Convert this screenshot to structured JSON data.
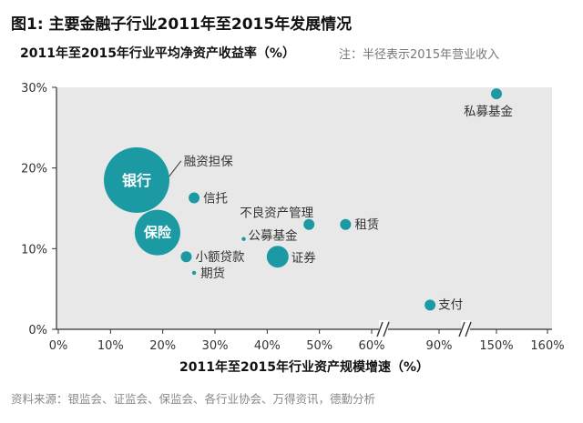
{
  "title": "图1: 主要金融子行业2011年至2015年发展情况",
  "subtitle": "2011年至2015年行业平均净资产收益率（%）",
  "note": "注：半径表示2015年营业收入",
  "source": "资料来源：银监会、证监会、保监会、各行业协会、万得资讯，德勤分析",
  "colors": {
    "bubble": "#1b9aa3",
    "bubble_label": "#ffffff",
    "axis": "#333333",
    "grid": "#cccccc",
    "plot_bg": "#e8e8e8"
  },
  "chart_data": {
    "type": "scatter",
    "title": "",
    "xlabel": "2011年至2015年行业资产规模增速（%）",
    "ylabel": "2011年至2015年行业平均净资产收益率（%）",
    "x_axis_break": true,
    "x_ticks": [
      "0%",
      "10%",
      "20%",
      "30%",
      "40%",
      "50%",
      "60%",
      "90%",
      "150%",
      "160%"
    ],
    "y_ticks": [
      "0%",
      "10%",
      "20%",
      "30%"
    ],
    "ylim": [
      0,
      30
    ],
    "grid": false,
    "points": [
      {
        "label": "银行",
        "x": 15,
        "y": 18.5,
        "size": "largest",
        "label_inside": true
      },
      {
        "label": "保险",
        "x": 19,
        "y": 12,
        "size": "large",
        "label_inside": true
      },
      {
        "label": "融资担保",
        "x": 19.5,
        "y": 17.5,
        "size": "tiny",
        "label_inside": false
      },
      {
        "label": "信托",
        "x": 26,
        "y": 16.3,
        "size": "small",
        "label_inside": false
      },
      {
        "label": "不良资产管理",
        "x": 48,
        "y": 13,
        "size": "small",
        "label_inside": false
      },
      {
        "label": "租赁",
        "x": 55,
        "y": 13,
        "size": "small",
        "label_inside": false
      },
      {
        "label": "公募基金",
        "x": 35.5,
        "y": 11.2,
        "size": "tiny",
        "label_inside": false
      },
      {
        "label": "小额贷款",
        "x": 24.5,
        "y": 9,
        "size": "small",
        "label_inside": false
      },
      {
        "label": "证券",
        "x": 42,
        "y": 9,
        "size": "medium",
        "label_inside": false
      },
      {
        "label": "期货",
        "x": 26,
        "y": 7,
        "size": "tiny",
        "label_inside": false
      },
      {
        "label": "支付",
        "x": 86,
        "y": 3,
        "size": "small",
        "label_inside": false
      },
      {
        "label": "私募基金",
        "x": 150,
        "y": 29.2,
        "size": "small",
        "label_inside": false
      }
    ]
  }
}
